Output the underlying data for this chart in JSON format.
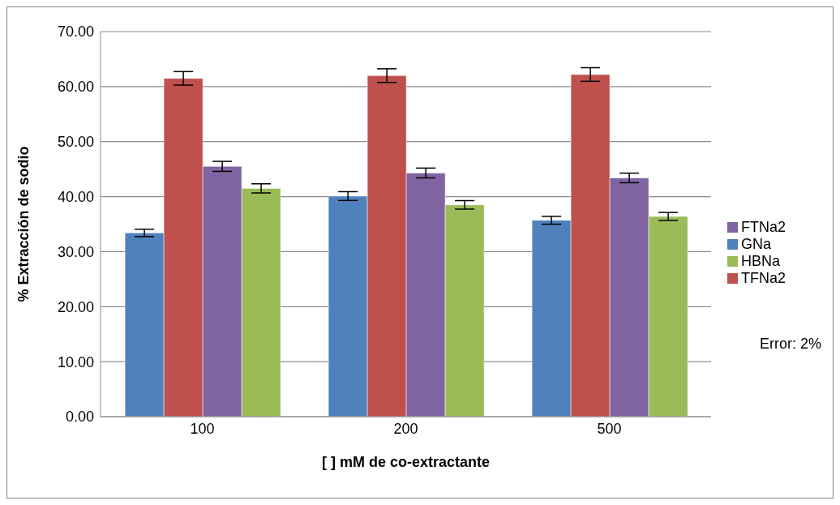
{
  "chart_data": {
    "type": "bar",
    "xlabel": "[ ] mM de co-extractante",
    "ylabel": "% Extracción de sodio",
    "categories": [
      "100",
      "200",
      "500"
    ],
    "series": [
      {
        "name": "GNa",
        "color": "#4f81bd",
        "values": [
          33.4,
          40.1,
          35.7
        ],
        "errors": [
          0.67,
          0.8,
          0.71
        ]
      },
      {
        "name": "TFNa2",
        "color": "#c0504d",
        "values": [
          61.5,
          62.0,
          62.2
        ],
        "errors": [
          1.23,
          1.24,
          1.24
        ]
      },
      {
        "name": "FTNa2",
        "color": "#8064a2",
        "values": [
          45.5,
          44.3,
          43.4
        ],
        "errors": [
          0.91,
          0.89,
          0.87
        ]
      },
      {
        "name": "HBNa",
        "color": "#9bbb59",
        "values": [
          41.5,
          38.5,
          36.4
        ],
        "errors": [
          0.83,
          0.77,
          0.73
        ]
      }
    ],
    "ylim": [
      0,
      70
    ],
    "yticks": [
      {
        "value": 0,
        "label": "0.00"
      },
      {
        "value": 10,
        "label": "10.00"
      },
      {
        "value": 20,
        "label": "20.00"
      },
      {
        "value": 30,
        "label": "30.00"
      },
      {
        "value": 40,
        "label": "40.00"
      },
      {
        "value": 50,
        "label": "50.00"
      },
      {
        "value": 60,
        "label": "60.00"
      },
      {
        "value": 70,
        "label": "70.00"
      }
    ],
    "grid": "y",
    "legend": "right",
    "annotations": [
      "Error: 2%"
    ]
  }
}
